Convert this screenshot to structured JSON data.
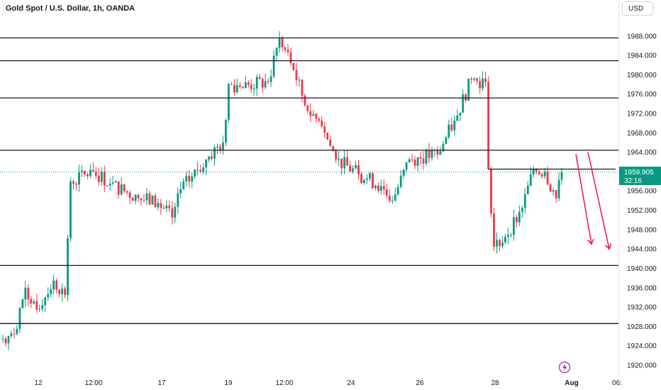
{
  "header": {
    "symbol_title": "Gold Spot / U.S. Dollar, 1h, OANDA",
    "currency_label": "USD"
  },
  "price_badge": {
    "price": "1959.905",
    "countdown": "32:16"
  },
  "chart_data": {
    "type": "candlestick",
    "title": "Gold Spot / U.S. Dollar, 1h, OANDA",
    "ylim": [
      1918.0,
      1993.2
    ],
    "y_ticks": [
      "1988.000",
      "1984.000",
      "1980.000",
      "1976.000",
      "1972.000",
      "1968.000",
      "1964.000",
      "1960.000",
      "1956.000",
      "1952.000",
      "1948.000",
      "1944.000",
      "1940.000",
      "1936.000",
      "1932.000",
      "1928.000",
      "1924.000",
      "1920.000"
    ],
    "x_ticks": [
      "12",
      "12:00",
      "17",
      "19",
      "12:00",
      "24",
      "26",
      "28",
      "Aug",
      "06:"
    ],
    "last_price": 1959.905,
    "horizontal_levels": [
      1987.6,
      1982.9,
      1975.2,
      1964.4,
      1940.6,
      1928.6
    ],
    "ohlc_waypoints": [
      {
        "i": 0,
        "close": 1925.5
      },
      {
        "i": 4,
        "close": 1926.5
      },
      {
        "i": 8,
        "close": 1936.0
      },
      {
        "i": 12,
        "close": 1931.5
      },
      {
        "i": 18,
        "close": 1937.5
      },
      {
        "i": 22,
        "close": 1934.5
      },
      {
        "i": 24,
        "close": 1958.0
      },
      {
        "i": 32,
        "close": 1960.0
      },
      {
        "i": 38,
        "close": 1957.5
      },
      {
        "i": 48,
        "close": 1954.5
      },
      {
        "i": 55,
        "close": 1953.5
      },
      {
        "i": 60,
        "close": 1950.5
      },
      {
        "i": 62,
        "close": 1955.5
      },
      {
        "i": 72,
        "close": 1962.5
      },
      {
        "i": 78,
        "close": 1966.0
      },
      {
        "i": 80,
        "close": 1978.0
      },
      {
        "i": 84,
        "close": 1977.5
      },
      {
        "i": 94,
        "close": 1978.5
      },
      {
        "i": 98,
        "close": 1987.5
      },
      {
        "i": 103,
        "close": 1981.0
      },
      {
        "i": 108,
        "close": 1972.5
      },
      {
        "i": 112,
        "close": 1970.5
      },
      {
        "i": 114,
        "close": 1968.0
      },
      {
        "i": 118,
        "close": 1962.5
      },
      {
        "i": 126,
        "close": 1959.5
      },
      {
        "i": 134,
        "close": 1957.0
      },
      {
        "i": 138,
        "close": 1954.0
      },
      {
        "i": 144,
        "close": 1962.5
      },
      {
        "i": 154,
        "close": 1963.5
      },
      {
        "i": 160,
        "close": 1970.5
      },
      {
        "i": 166,
        "close": 1979.0
      },
      {
        "i": 171,
        "close": 1978.5
      },
      {
        "i": 172,
        "close": 1960.5
      },
      {
        "i": 174,
        "close": 1944.5
      },
      {
        "i": 178,
        "close": 1946.5
      },
      {
        "i": 184,
        "close": 1952.5
      },
      {
        "i": 188,
        "close": 1960.5
      },
      {
        "i": 192,
        "close": 1960.0
      },
      {
        "i": 196,
        "close": 1954.5
      },
      {
        "i": 198,
        "close": 1959.9
      }
    ],
    "annotations": [
      {
        "type": "arrow",
        "from": [
          1963.6,
          "~Aug"
        ],
        "to": [
          1945.0,
          "~Aug"
        ]
      },
      {
        "type": "arrow",
        "from": [
          1964.0,
          "~Aug"
        ],
        "to": [
          1944.0,
          "~Aug"
        ]
      }
    ],
    "colors": {
      "up": "#089981",
      "down": "#f23645",
      "level_line": "#131722",
      "arrow": "#e91e63",
      "price_badge": "#089981"
    }
  }
}
